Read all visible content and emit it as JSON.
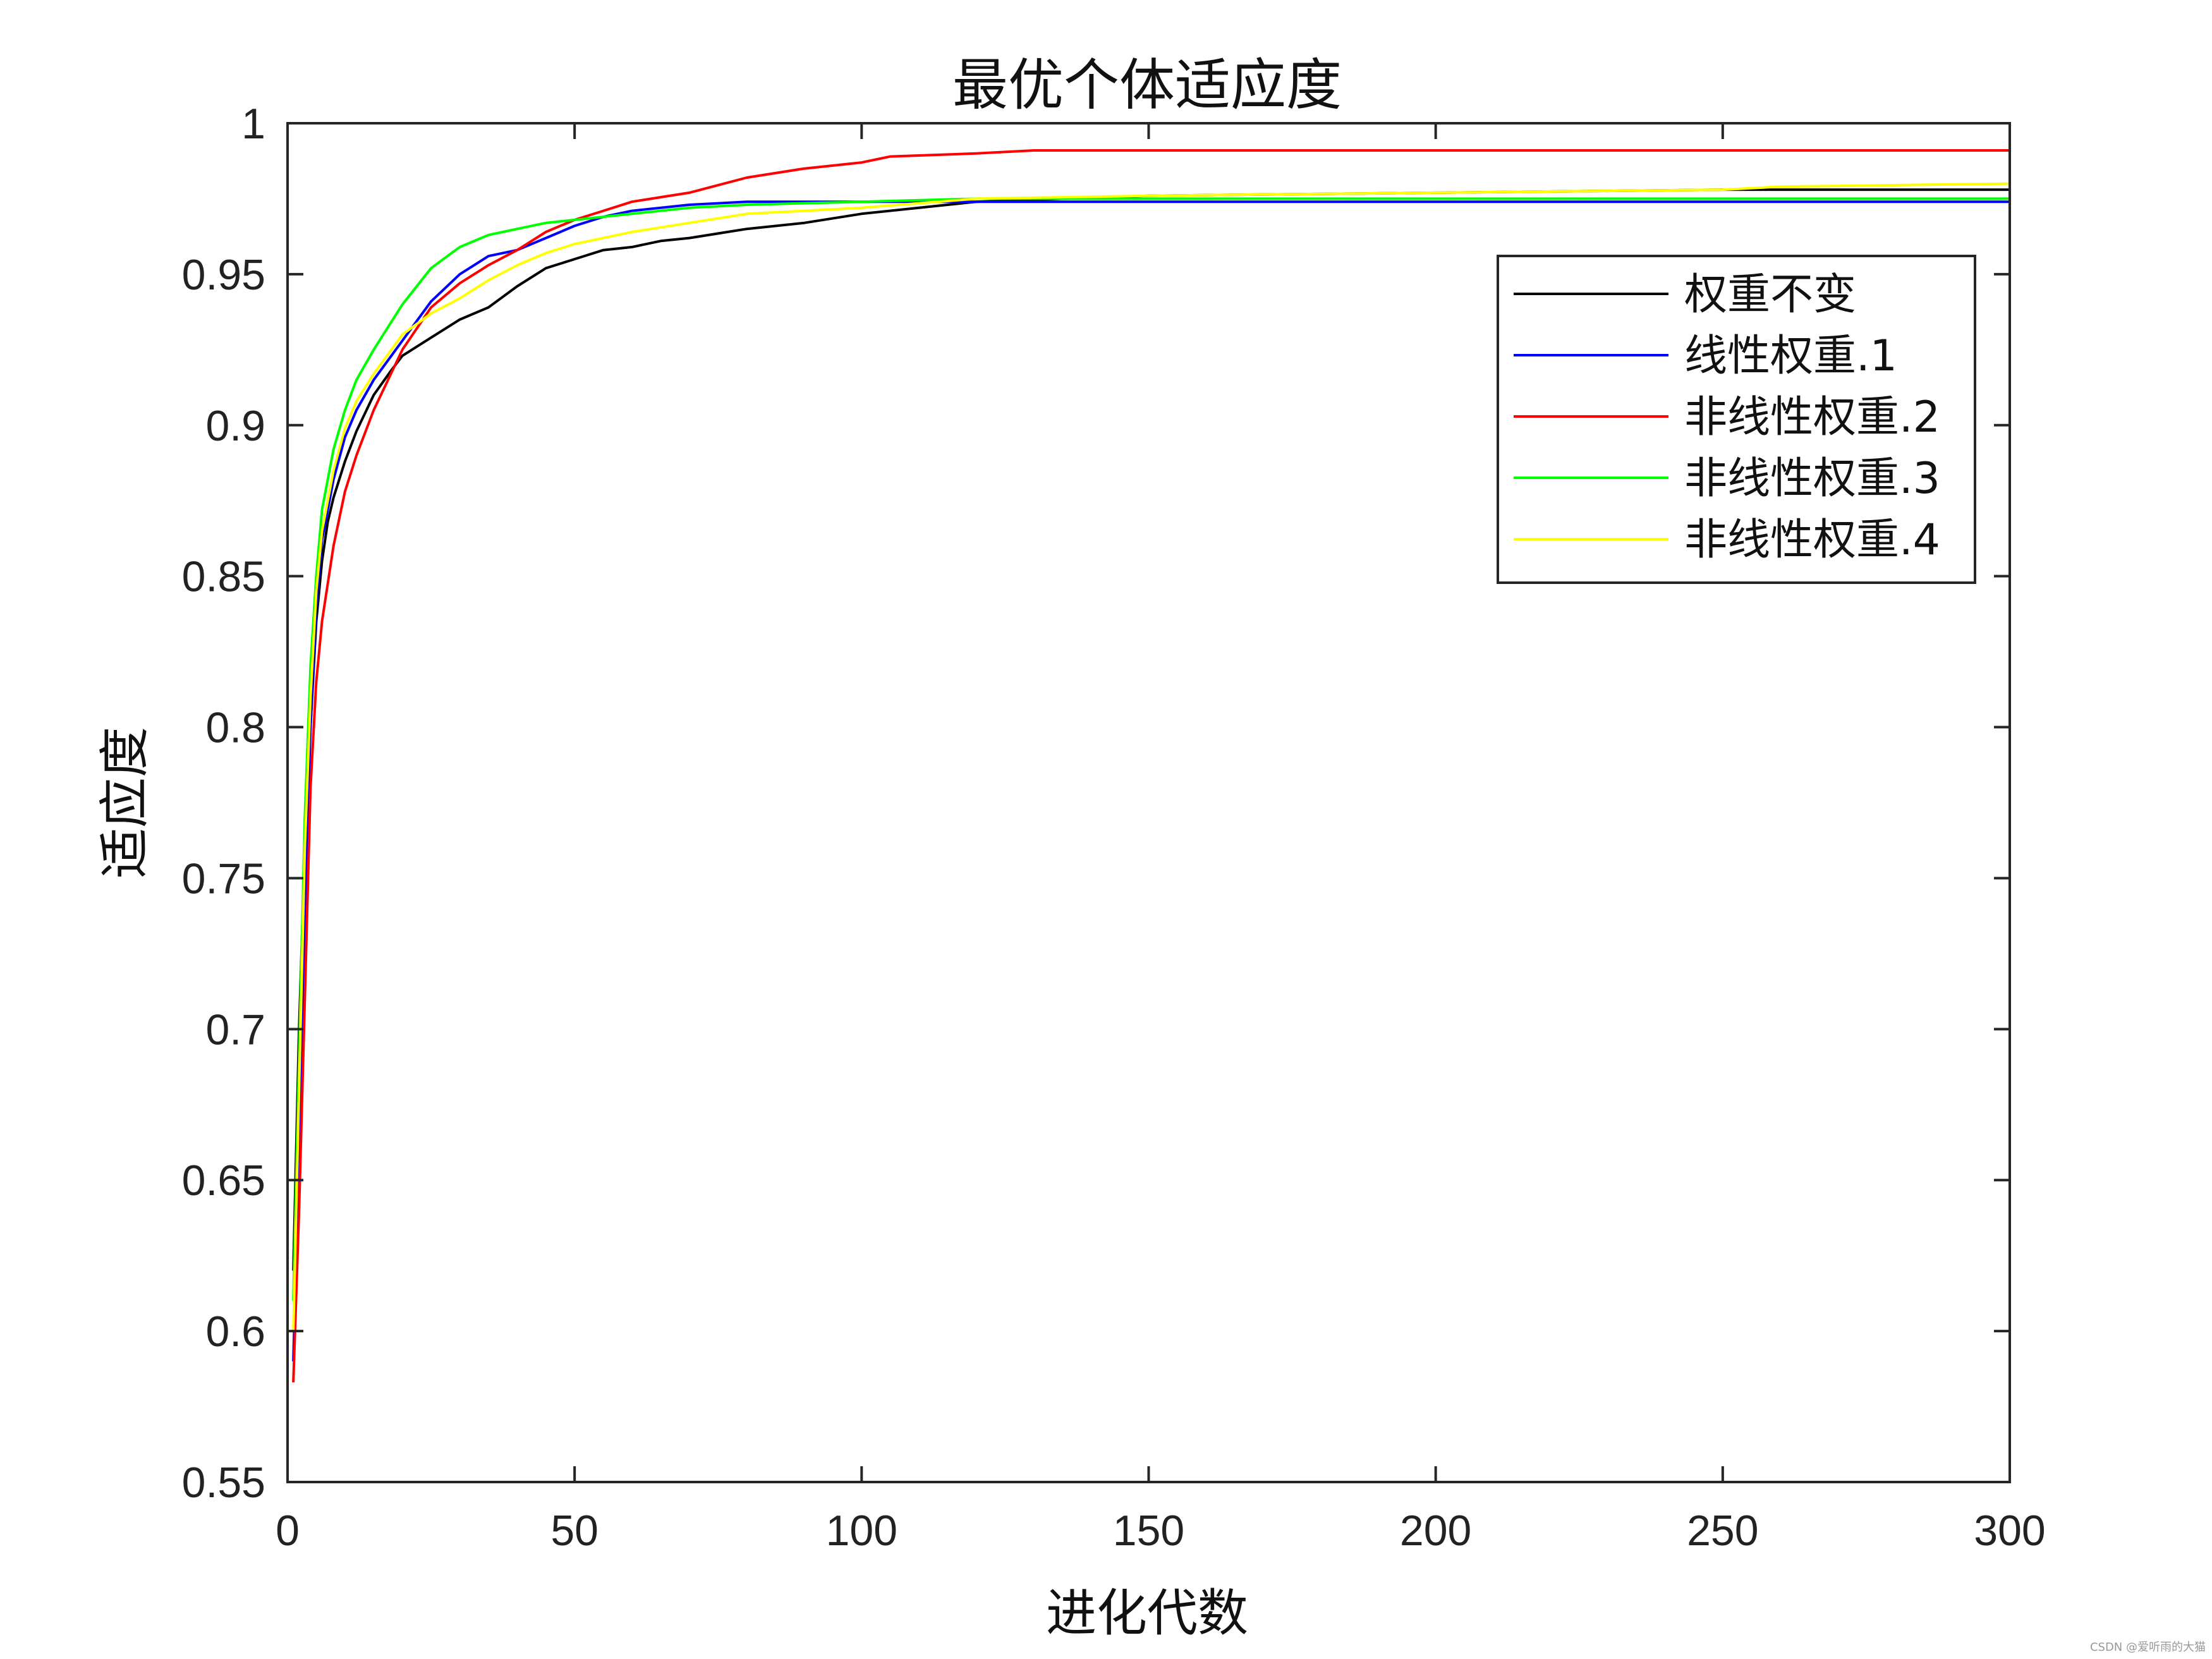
{
  "chart_data": {
    "type": "line",
    "title": "最优个体适应度",
    "xlabel": "进化代数",
    "ylabel": "适应度",
    "xlim": [
      0,
      300
    ],
    "ylim": [
      0.55,
      1
    ],
    "xticks": [
      0,
      50,
      100,
      150,
      200,
      250,
      300
    ],
    "xtick_labels": [
      "0",
      "50",
      "100",
      "150",
      "200",
      "250",
      "300"
    ],
    "yticks": [
      0.55,
      0.6,
      0.65,
      0.7,
      0.75,
      0.8,
      0.85,
      0.9,
      0.95,
      1
    ],
    "ytick_labels": [
      "0.55",
      "0.6",
      "0.65",
      "0.7",
      "0.75",
      "0.8",
      "0.85",
      "0.9",
      "0.95",
      "1"
    ],
    "grid": false,
    "legend_position": "top-right",
    "series": [
      {
        "name": "权重不变",
        "color": "#000000",
        "points": [
          [
            1,
            0.62
          ],
          [
            2,
            0.7
          ],
          [
            3,
            0.76
          ],
          [
            4,
            0.8
          ],
          [
            5,
            0.835
          ],
          [
            6,
            0.855
          ],
          [
            7,
            0.868
          ],
          [
            8,
            0.876
          ],
          [
            10,
            0.888
          ],
          [
            12,
            0.898
          ],
          [
            15,
            0.91
          ],
          [
            18,
            0.918
          ],
          [
            20,
            0.923
          ],
          [
            25,
            0.929
          ],
          [
            30,
            0.935
          ],
          [
            35,
            0.939
          ],
          [
            40,
            0.946
          ],
          [
            45,
            0.952
          ],
          [
            50,
            0.955
          ],
          [
            55,
            0.958
          ],
          [
            60,
            0.959
          ],
          [
            65,
            0.961
          ],
          [
            70,
            0.962
          ],
          [
            80,
            0.965
          ],
          [
            90,
            0.967
          ],
          [
            100,
            0.97
          ],
          [
            110,
            0.972
          ],
          [
            120,
            0.974
          ],
          [
            150,
            0.976
          ],
          [
            200,
            0.977
          ],
          [
            250,
            0.978
          ],
          [
            300,
            0.978
          ]
        ]
      },
      {
        "name": "线性权重.1",
        "color": "#0000ff",
        "points": [
          [
            1,
            0.59
          ],
          [
            2,
            0.66
          ],
          [
            3,
            0.74
          ],
          [
            4,
            0.8
          ],
          [
            5,
            0.84
          ],
          [
            6,
            0.862
          ],
          [
            8,
            0.882
          ],
          [
            10,
            0.896
          ],
          [
            12,
            0.905
          ],
          [
            15,
            0.915
          ],
          [
            20,
            0.928
          ],
          [
            25,
            0.941
          ],
          [
            30,
            0.95
          ],
          [
            35,
            0.956
          ],
          [
            40,
            0.958
          ],
          [
            45,
            0.962
          ],
          [
            50,
            0.966
          ],
          [
            55,
            0.969
          ],
          [
            60,
            0.971
          ],
          [
            70,
            0.973
          ],
          [
            80,
            0.974
          ],
          [
            100,
            0.974
          ],
          [
            150,
            0.974
          ],
          [
            200,
            0.974
          ],
          [
            250,
            0.974
          ],
          [
            300,
            0.974
          ]
        ]
      },
      {
        "name": "非线性权重.2",
        "color": "#ff0000",
        "points": [
          [
            1,
            0.583
          ],
          [
            2,
            0.64
          ],
          [
            3,
            0.71
          ],
          [
            4,
            0.78
          ],
          [
            5,
            0.815
          ],
          [
            6,
            0.835
          ],
          [
            8,
            0.86
          ],
          [
            10,
            0.878
          ],
          [
            12,
            0.89
          ],
          [
            15,
            0.905
          ],
          [
            20,
            0.925
          ],
          [
            25,
            0.939
          ],
          [
            30,
            0.947
          ],
          [
            35,
            0.953
          ],
          [
            40,
            0.958
          ],
          [
            45,
            0.964
          ],
          [
            50,
            0.968
          ],
          [
            55,
            0.971
          ],
          [
            60,
            0.974
          ],
          [
            70,
            0.977
          ],
          [
            80,
            0.982
          ],
          [
            90,
            0.985
          ],
          [
            100,
            0.987
          ],
          [
            105,
            0.989
          ],
          [
            120,
            0.99
          ],
          [
            130,
            0.991
          ],
          [
            150,
            0.991
          ],
          [
            200,
            0.991
          ],
          [
            250,
            0.991
          ],
          [
            300,
            0.991
          ]
        ]
      },
      {
        "name": "非线性权重.3",
        "color": "#00ff00",
        "points": [
          [
            1,
            0.61
          ],
          [
            2,
            0.69
          ],
          [
            3,
            0.77
          ],
          [
            4,
            0.82
          ],
          [
            5,
            0.85
          ],
          [
            6,
            0.872
          ],
          [
            8,
            0.892
          ],
          [
            10,
            0.905
          ],
          [
            12,
            0.915
          ],
          [
            15,
            0.925
          ],
          [
            20,
            0.94
          ],
          [
            25,
            0.952
          ],
          [
            30,
            0.959
          ],
          [
            35,
            0.963
          ],
          [
            40,
            0.965
          ],
          [
            45,
            0.967
          ],
          [
            50,
            0.968
          ],
          [
            60,
            0.97
          ],
          [
            70,
            0.972
          ],
          [
            80,
            0.973
          ],
          [
            100,
            0.974
          ],
          [
            120,
            0.975
          ],
          [
            150,
            0.975
          ],
          [
            200,
            0.975
          ],
          [
            250,
            0.975
          ],
          [
            300,
            0.975
          ]
        ]
      },
      {
        "name": "非线性权重.4",
        "color": "#ffff00",
        "points": [
          [
            1,
            0.6
          ],
          [
            2,
            0.68
          ],
          [
            3,
            0.76
          ],
          [
            4,
            0.81
          ],
          [
            5,
            0.845
          ],
          [
            6,
            0.865
          ],
          [
            8,
            0.885
          ],
          [
            10,
            0.899
          ],
          [
            12,
            0.908
          ],
          [
            15,
            0.917
          ],
          [
            20,
            0.93
          ],
          [
            25,
            0.937
          ],
          [
            30,
            0.942
          ],
          [
            35,
            0.948
          ],
          [
            40,
            0.953
          ],
          [
            45,
            0.957
          ],
          [
            50,
            0.96
          ],
          [
            55,
            0.962
          ],
          [
            60,
            0.964
          ],
          [
            70,
            0.967
          ],
          [
            80,
            0.97
          ],
          [
            90,
            0.971
          ],
          [
            100,
            0.972
          ],
          [
            120,
            0.975
          ],
          [
            150,
            0.976
          ],
          [
            200,
            0.977
          ],
          [
            250,
            0.978
          ],
          [
            260,
            0.979
          ],
          [
            300,
            0.98
          ]
        ]
      }
    ]
  },
  "watermark": "CSDN @爱听雨的大猫"
}
